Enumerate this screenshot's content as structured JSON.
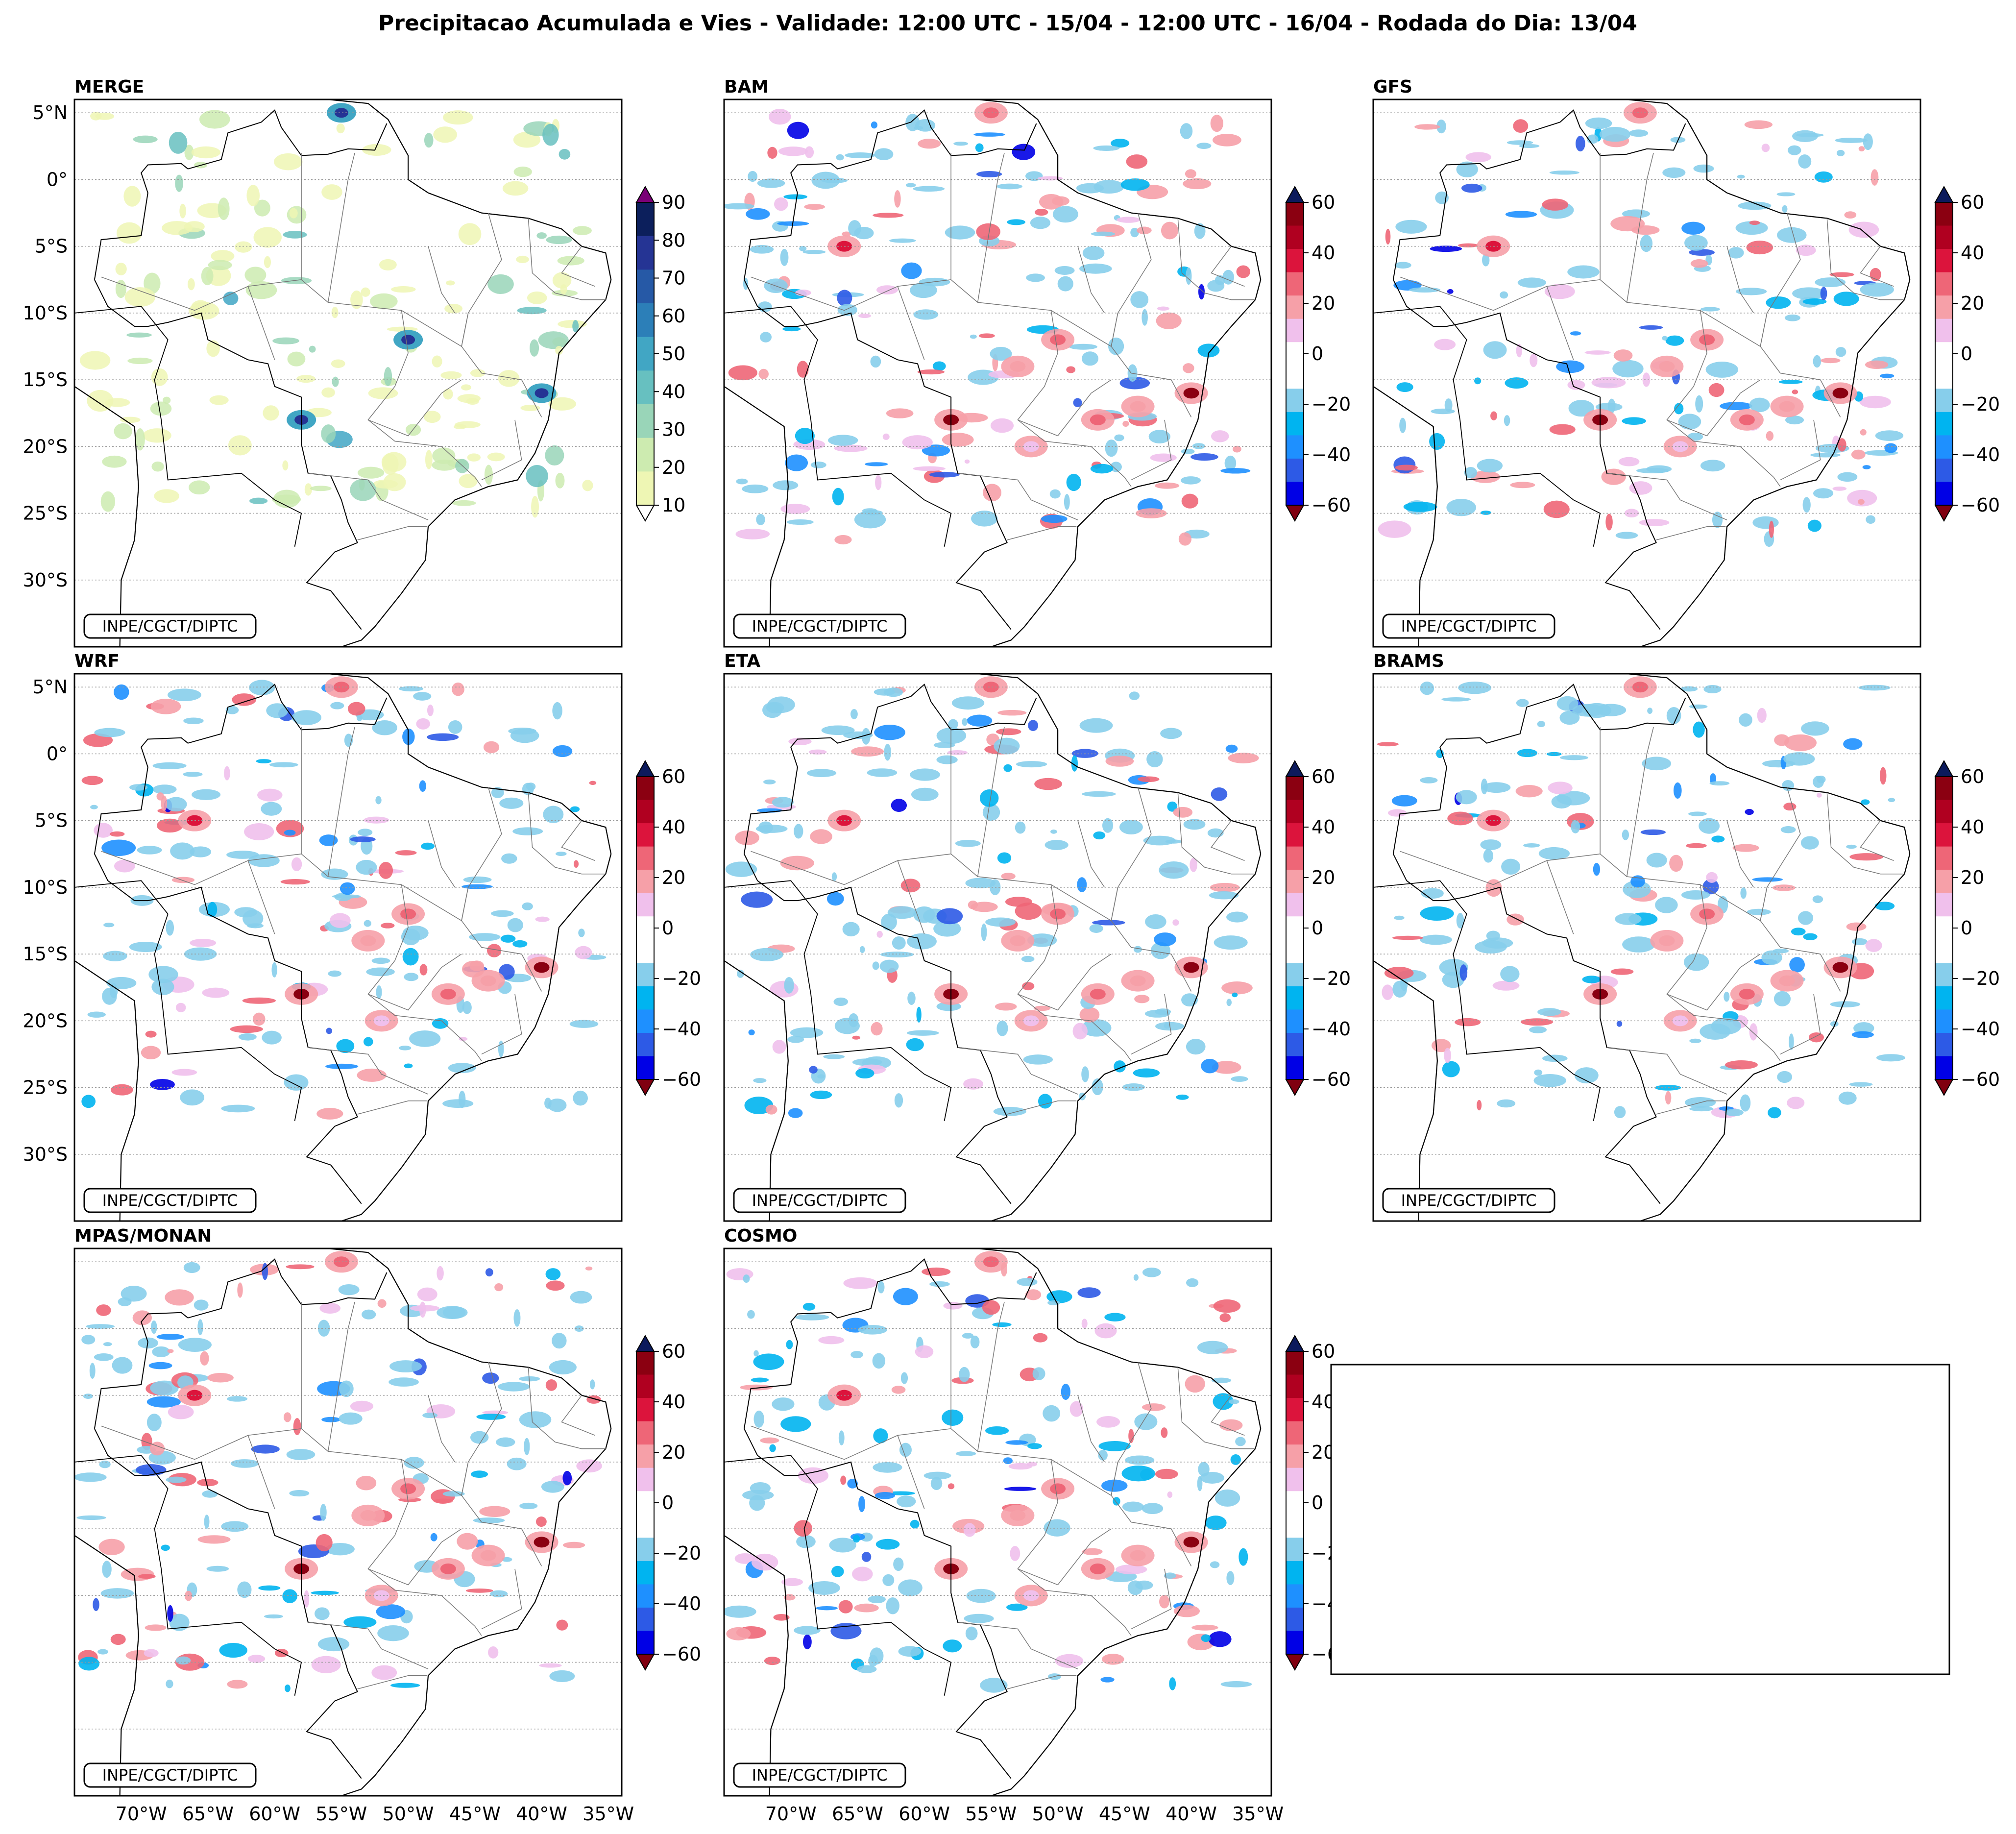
{
  "title": "Precipitacao Acumulada e Vies - Validade: 12:00 UTC - 15/04 - 12:00 UTC - 16/04 - Rodada do Dia: 13/04",
  "credit": "INPE/CGCT/DIPTC",
  "axes": {
    "lat_labels": [
      "5°N",
      "0°",
      "5°S",
      "10°S",
      "15°S",
      "20°S",
      "25°S",
      "30°S"
    ],
    "lon_labels": [
      "70°W",
      "65°W",
      "60°W",
      "55°W",
      "50°W",
      "45°W",
      "40°W",
      "35°W"
    ]
  },
  "panels": [
    {
      "name": "MERGE",
      "kind": "precip",
      "show_lat": true,
      "show_lon": false
    },
    {
      "name": "BAM",
      "kind": "bias",
      "show_lat": false,
      "show_lon": false
    },
    {
      "name": "GFS",
      "kind": "bias",
      "show_lat": false,
      "show_lon": false
    },
    {
      "name": "WRF",
      "kind": "bias",
      "show_lat": true,
      "show_lon": false
    },
    {
      "name": "ETA",
      "kind": "bias",
      "show_lat": false,
      "show_lon": false
    },
    {
      "name": "BRAMS",
      "kind": "bias",
      "show_lat": false,
      "show_lon": false
    },
    {
      "name": "MPAS/MONAN",
      "kind": "bias",
      "show_lat": false,
      "show_lon": true
    },
    {
      "name": "COSMO",
      "kind": "bias",
      "show_lat": false,
      "show_lon": true
    }
  ],
  "colorbars": {
    "precip": {
      "labels": [
        "90",
        "80",
        "70",
        "60",
        "50",
        "40",
        "30",
        "20",
        "10"
      ],
      "colors": [
        "#eef6b4",
        "#cdebb0",
        "#99d5b8",
        "#67c0c0",
        "#41a6c4",
        "#2c7fb8",
        "#2659a6",
        "#253494",
        "#0c1f5c"
      ],
      "extend_top": "#7a0177",
      "extend_bottom": "#ffffff"
    },
    "bias": {
      "labels": [
        "60",
        "40",
        "20",
        "0",
        "−20",
        "−40",
        "−60"
      ],
      "colors": [
        "#0000e6",
        "#2d5ae6",
        "#1e90ff",
        "#00b4f0",
        "#87ceeb",
        "#ffffff",
        "#ffffff",
        "#f0c0ec",
        "#f6a0a8",
        "#ee6677",
        "#dc143c",
        "#b00020",
        "#8b0011"
      ],
      "extend_top": "#0c1a5c",
      "extend_bottom": "#800010"
    }
  }
}
